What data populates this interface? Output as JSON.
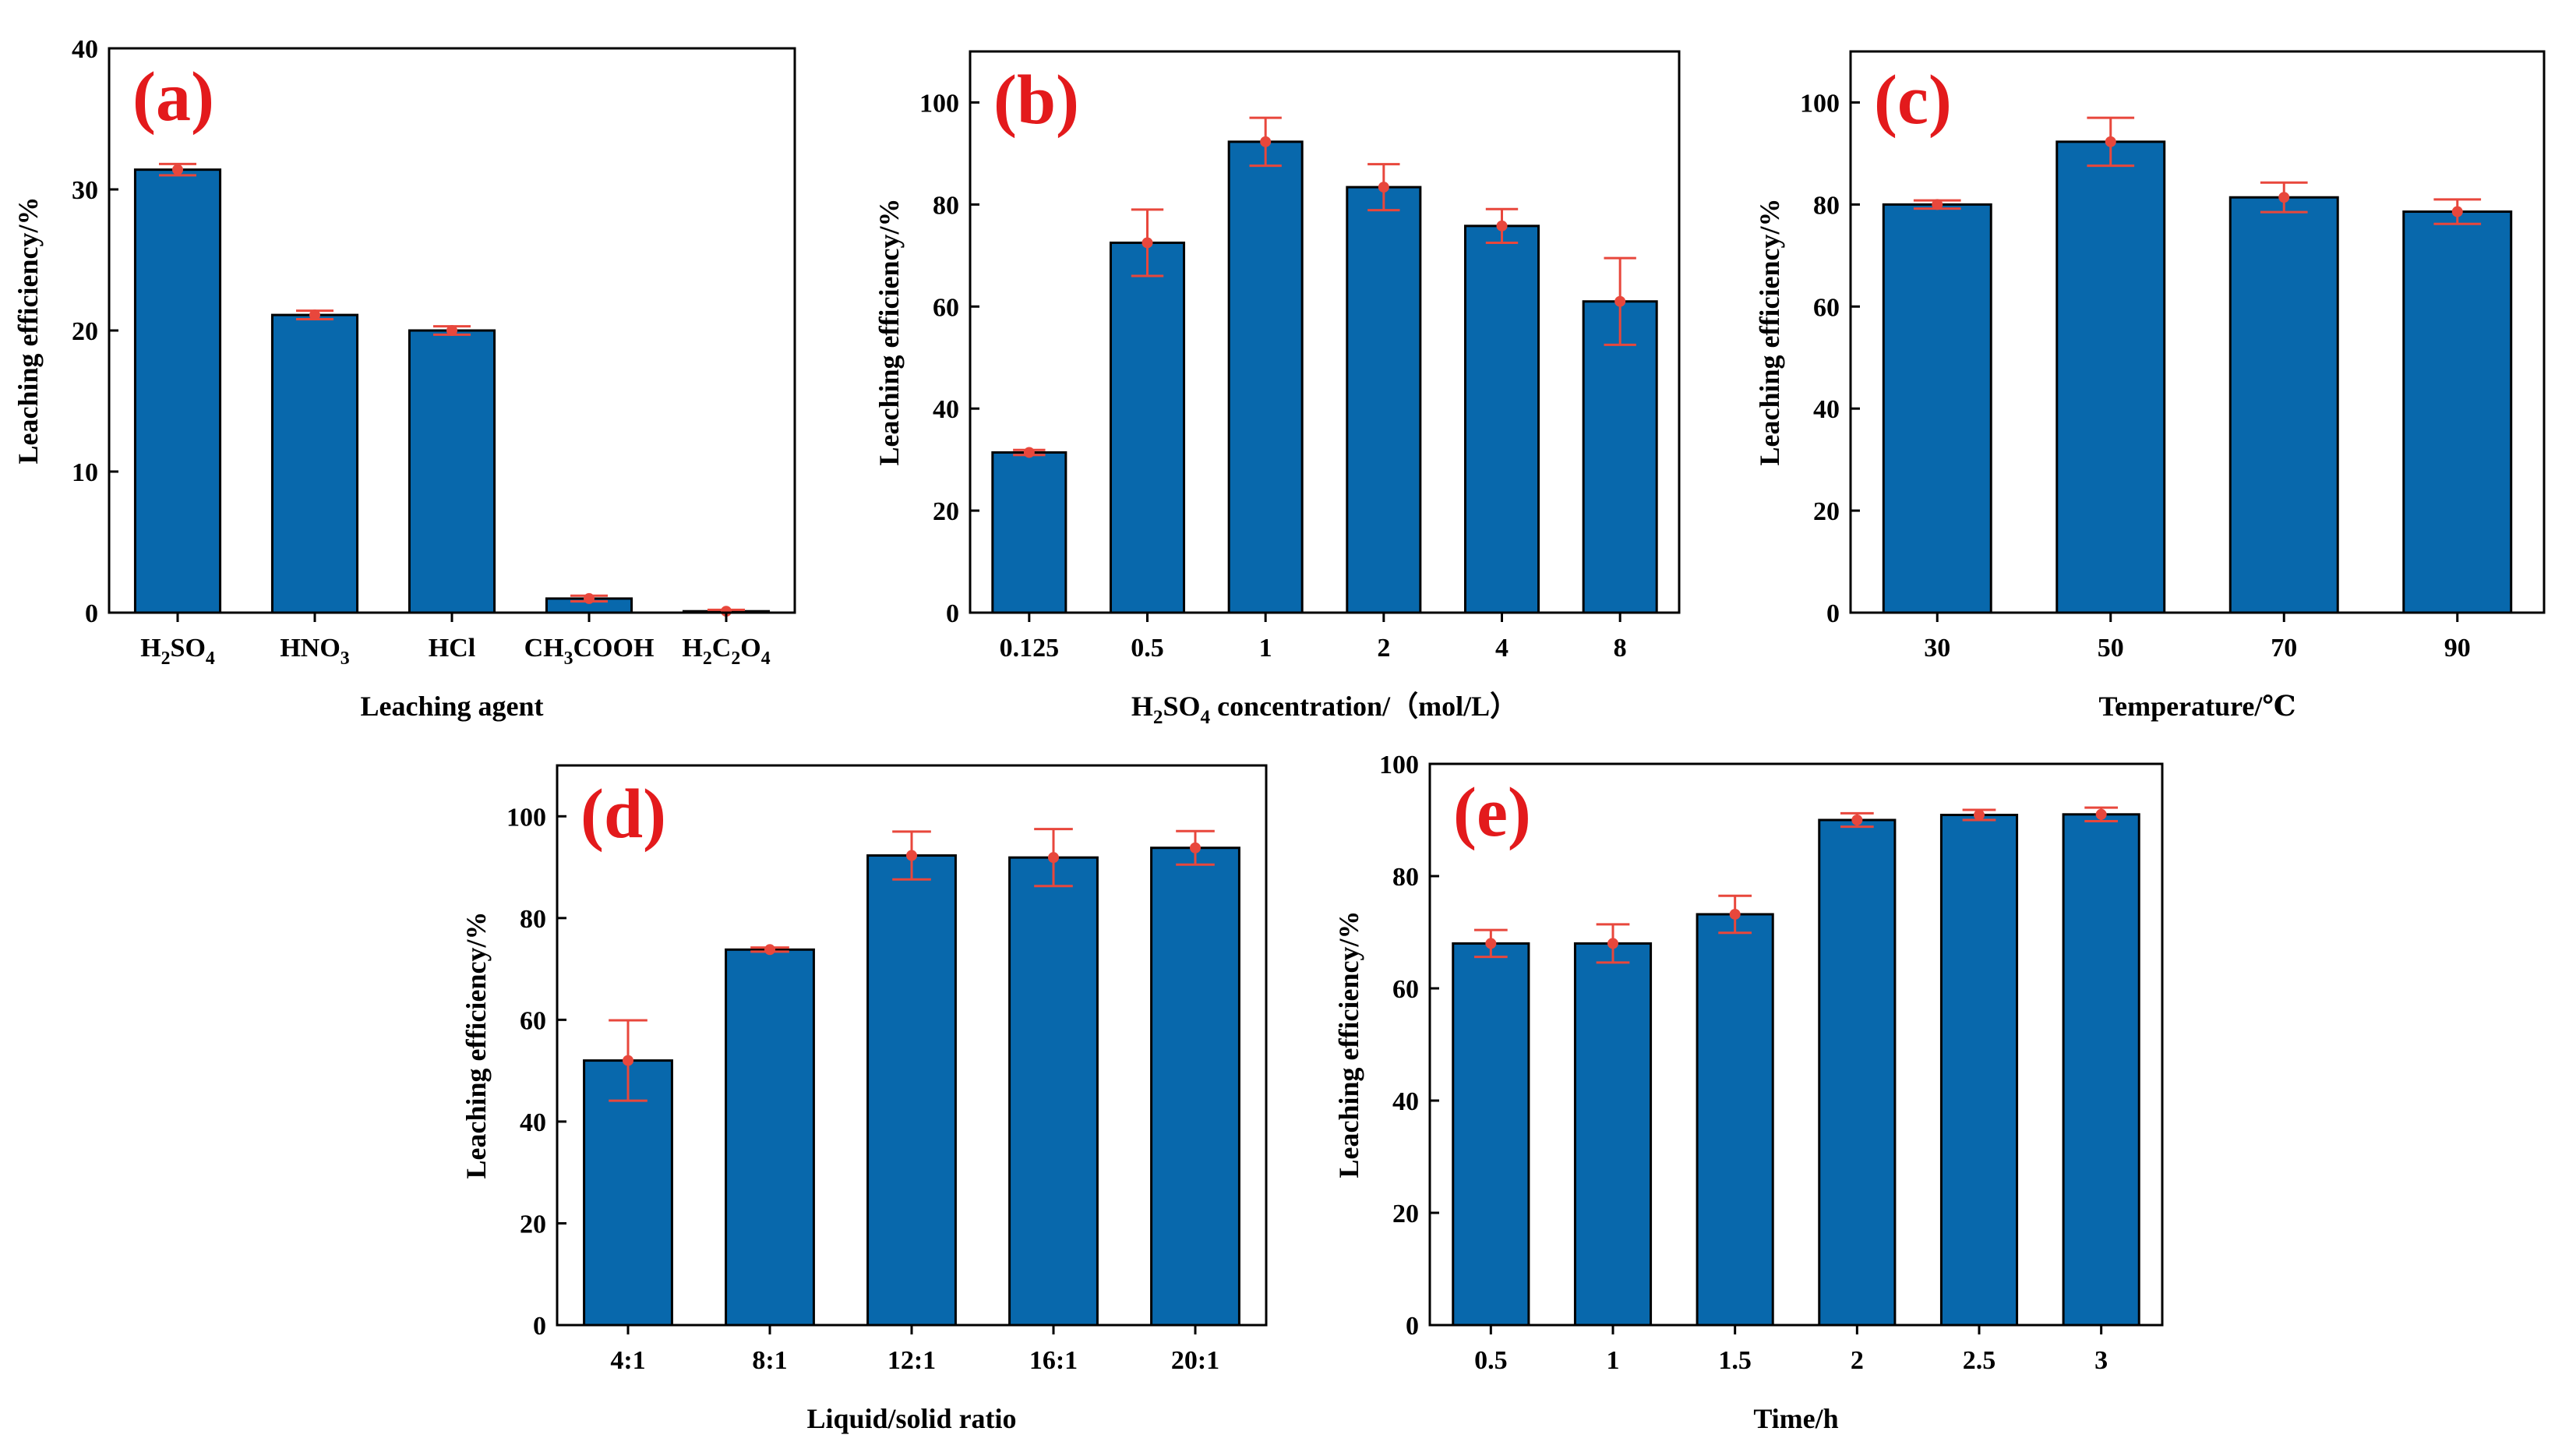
{
  "style": {
    "bar_color": "#0868ac",
    "bar_edge_color": "#000000",
    "error_color": "#e8473c",
    "label_color": "#e31a1c"
  },
  "chart_data": [
    {
      "panel": "(a)",
      "type": "bar",
      "categories": [
        {
          "main": "H",
          "parts": [
            [
              "H",
              ""
            ],
            [
              "2",
              "sub"
            ],
            [
              "SO",
              ""
            ],
            [
              "4",
              "sub"
            ]
          ]
        },
        {
          "main": "HNO",
          "parts": [
            [
              "HNO",
              ""
            ],
            [
              "3",
              "sub"
            ]
          ]
        },
        {
          "main": "HCl",
          "parts": [
            [
              "HCl",
              ""
            ]
          ]
        },
        {
          "main": "CH",
          "parts": [
            [
              "CH",
              ""
            ],
            [
              "3",
              "sub"
            ],
            [
              "COOH",
              ""
            ]
          ]
        },
        {
          "main": "H",
          "parts": [
            [
              "H",
              ""
            ],
            [
              "2",
              "sub"
            ],
            [
              "C",
              ""
            ],
            [
              "2",
              "sub"
            ],
            [
              "O",
              ""
            ],
            [
              "4",
              "sub"
            ]
          ]
        }
      ],
      "values": [
        31.4,
        21.1,
        20.0,
        1.0,
        0.1
      ],
      "errors": [
        0.4,
        0.3,
        0.3,
        0.2,
        0.1
      ],
      "xlabel": "Leaching agent",
      "ylabel": "Leaching efficiency/%",
      "ylim": [
        0,
        40
      ],
      "yticks": [
        "0",
        "10",
        "20",
        "30",
        "40"
      ]
    },
    {
      "panel": "(b)",
      "type": "bar",
      "categories": [
        {
          "parts": [
            [
              "0.125",
              ""
            ]
          ]
        },
        {
          "parts": [
            [
              "0.5",
              ""
            ]
          ]
        },
        {
          "parts": [
            [
              "1",
              ""
            ]
          ]
        },
        {
          "parts": [
            [
              "2",
              ""
            ]
          ]
        },
        {
          "parts": [
            [
              "4",
              ""
            ]
          ]
        },
        {
          "parts": [
            [
              "8",
              ""
            ]
          ]
        }
      ],
      "values": [
        31.4,
        72.5,
        92.3,
        83.4,
        75.8,
        61.0
      ],
      "errors": [
        0.5,
        6.5,
        4.7,
        4.5,
        3.3,
        8.5
      ],
      "xlabel_parts": [
        [
          "H",
          ""
        ],
        [
          "2",
          "sub"
        ],
        [
          "SO",
          ""
        ],
        [
          "4",
          "sub"
        ],
        [
          " concentration/（mol/L）",
          ""
        ]
      ],
      "xlabel": "H2SO4 concentration/（mol/L）",
      "ylabel": "Leaching efficiency/%",
      "ylim": [
        0,
        110
      ],
      "yticks": [
        "0",
        "20",
        "40",
        "60",
        "80",
        "100"
      ]
    },
    {
      "panel": "(c)",
      "type": "bar",
      "categories": [
        {
          "parts": [
            [
              "30",
              ""
            ]
          ]
        },
        {
          "parts": [
            [
              "50",
              ""
            ]
          ]
        },
        {
          "parts": [
            [
              "70",
              ""
            ]
          ]
        },
        {
          "parts": [
            [
              "90",
              ""
            ]
          ]
        }
      ],
      "values": [
        80.0,
        92.3,
        81.4,
        78.6
      ],
      "errors": [
        0.8,
        4.7,
        2.9,
        2.4
      ],
      "xlabel": "Temperature/℃",
      "ylabel": "Leaching efficiency/%",
      "ylim": [
        0,
        110
      ],
      "yticks": [
        "0",
        "20",
        "40",
        "60",
        "80",
        "100"
      ]
    },
    {
      "panel": "(d)",
      "type": "bar",
      "categories": [
        {
          "parts": [
            [
              "4:1",
              ""
            ]
          ]
        },
        {
          "parts": [
            [
              "8:1",
              ""
            ]
          ]
        },
        {
          "parts": [
            [
              "12:1",
              ""
            ]
          ]
        },
        {
          "parts": [
            [
              "16:1",
              ""
            ]
          ]
        },
        {
          "parts": [
            [
              "20:1",
              ""
            ]
          ]
        }
      ],
      "values": [
        52.0,
        73.8,
        92.3,
        91.9,
        93.8
      ],
      "errors": [
        7.9,
        0.4,
        4.7,
        5.6,
        3.3
      ],
      "xlabel": "Liquid/solid ratio",
      "ylabel": "Leaching efficiency/%",
      "ylim": [
        0,
        110
      ],
      "yticks": [
        "0",
        "20",
        "40",
        "60",
        "80",
        "100"
      ]
    },
    {
      "panel": "(e)",
      "type": "bar",
      "categories": [
        {
          "parts": [
            [
              "0.5",
              ""
            ]
          ]
        },
        {
          "parts": [
            [
              "1",
              ""
            ]
          ]
        },
        {
          "parts": [
            [
              "1.5",
              ""
            ]
          ]
        },
        {
          "parts": [
            [
              "2",
              ""
            ]
          ]
        },
        {
          "parts": [
            [
              "2.5",
              ""
            ]
          ]
        },
        {
          "parts": [
            [
              "3",
              ""
            ]
          ]
        }
      ],
      "values": [
        68.0,
        68.0,
        73.2,
        90.0,
        90.9,
        91.0
      ],
      "errors": [
        2.4,
        3.4,
        3.3,
        1.2,
        0.9,
        1.2
      ],
      "xlabel": "Time/h",
      "ylabel": "Leaching efficiency/%",
      "ylim": [
        0,
        100
      ],
      "yticks": [
        "0",
        "20",
        "40",
        "60",
        "80",
        "100"
      ]
    }
  ]
}
